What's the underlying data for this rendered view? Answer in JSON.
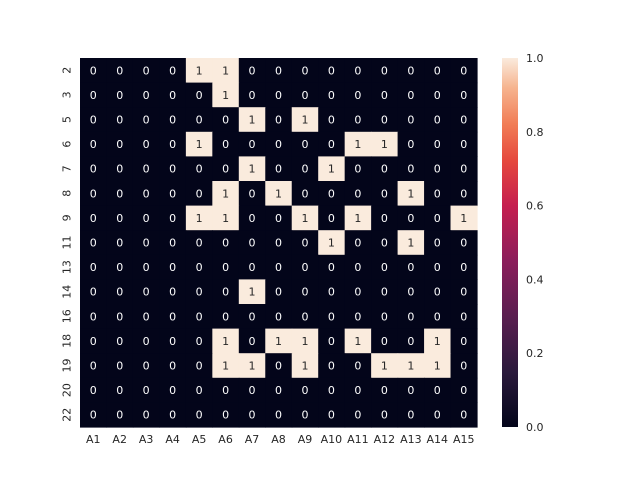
{
  "chart_data": {
    "type": "heatmap",
    "title": "",
    "xlabel": "",
    "ylabel": "",
    "columns": [
      "A1",
      "A2",
      "A3",
      "A4",
      "A5",
      "A6",
      "A7",
      "A8",
      "A9",
      "A10",
      "A11",
      "A12",
      "A13",
      "A14",
      "A15"
    ],
    "rows": [
      "2",
      "3",
      "5",
      "6",
      "7",
      "8",
      "9",
      "11",
      "13",
      "14",
      "16",
      "18",
      "19",
      "20",
      "22"
    ],
    "values": [
      [
        0,
        0,
        0,
        0,
        1,
        1,
        0,
        0,
        0,
        0,
        0,
        0,
        0,
        0,
        0
      ],
      [
        0,
        0,
        0,
        0,
        0,
        1,
        0,
        0,
        0,
        0,
        0,
        0,
        0,
        0,
        0
      ],
      [
        0,
        0,
        0,
        0,
        0,
        0,
        1,
        0,
        1,
        0,
        0,
        0,
        0,
        0,
        0
      ],
      [
        0,
        0,
        0,
        0,
        1,
        0,
        0,
        0,
        0,
        0,
        1,
        1,
        0,
        0,
        0
      ],
      [
        0,
        0,
        0,
        0,
        0,
        0,
        1,
        0,
        0,
        1,
        0,
        0,
        0,
        0,
        0
      ],
      [
        0,
        0,
        0,
        0,
        0,
        1,
        0,
        1,
        0,
        0,
        0,
        0,
        1,
        0,
        0
      ],
      [
        0,
        0,
        0,
        0,
        1,
        1,
        0,
        0,
        1,
        0,
        1,
        0,
        0,
        0,
        1
      ],
      [
        0,
        0,
        0,
        0,
        0,
        0,
        0,
        0,
        0,
        1,
        0,
        0,
        1,
        0,
        0
      ],
      [
        0,
        0,
        0,
        0,
        0,
        0,
        0,
        0,
        0,
        0,
        0,
        0,
        0,
        0,
        0
      ],
      [
        0,
        0,
        0,
        0,
        0,
        0,
        1,
        0,
        0,
        0,
        0,
        0,
        0,
        0,
        0
      ],
      [
        0,
        0,
        0,
        0,
        0,
        0,
        0,
        0,
        0,
        0,
        0,
        0,
        0,
        0,
        0
      ],
      [
        0,
        0,
        0,
        0,
        0,
        1,
        0,
        1,
        1,
        0,
        1,
        0,
        0,
        1,
        0
      ],
      [
        0,
        0,
        0,
        0,
        0,
        1,
        1,
        0,
        1,
        0,
        0,
        1,
        1,
        1,
        0
      ],
      [
        0,
        0,
        0,
        0,
        0,
        0,
        0,
        0,
        0,
        0,
        0,
        0,
        0,
        0,
        0
      ],
      [
        0,
        0,
        0,
        0,
        0,
        0,
        0,
        0,
        0,
        0,
        0,
        0,
        0,
        0,
        0
      ]
    ],
    "annotated": true,
    "colorbar": {
      "range": [
        0.0,
        1.0
      ],
      "ticks": [
        "0.0",
        "0.2",
        "0.4",
        "0.6",
        "0.8",
        "1.0"
      ]
    },
    "colors": {
      "low": "#03051a",
      "high": "#faebdd",
      "low_text": "#ffffff",
      "high_text": "#262626"
    }
  }
}
